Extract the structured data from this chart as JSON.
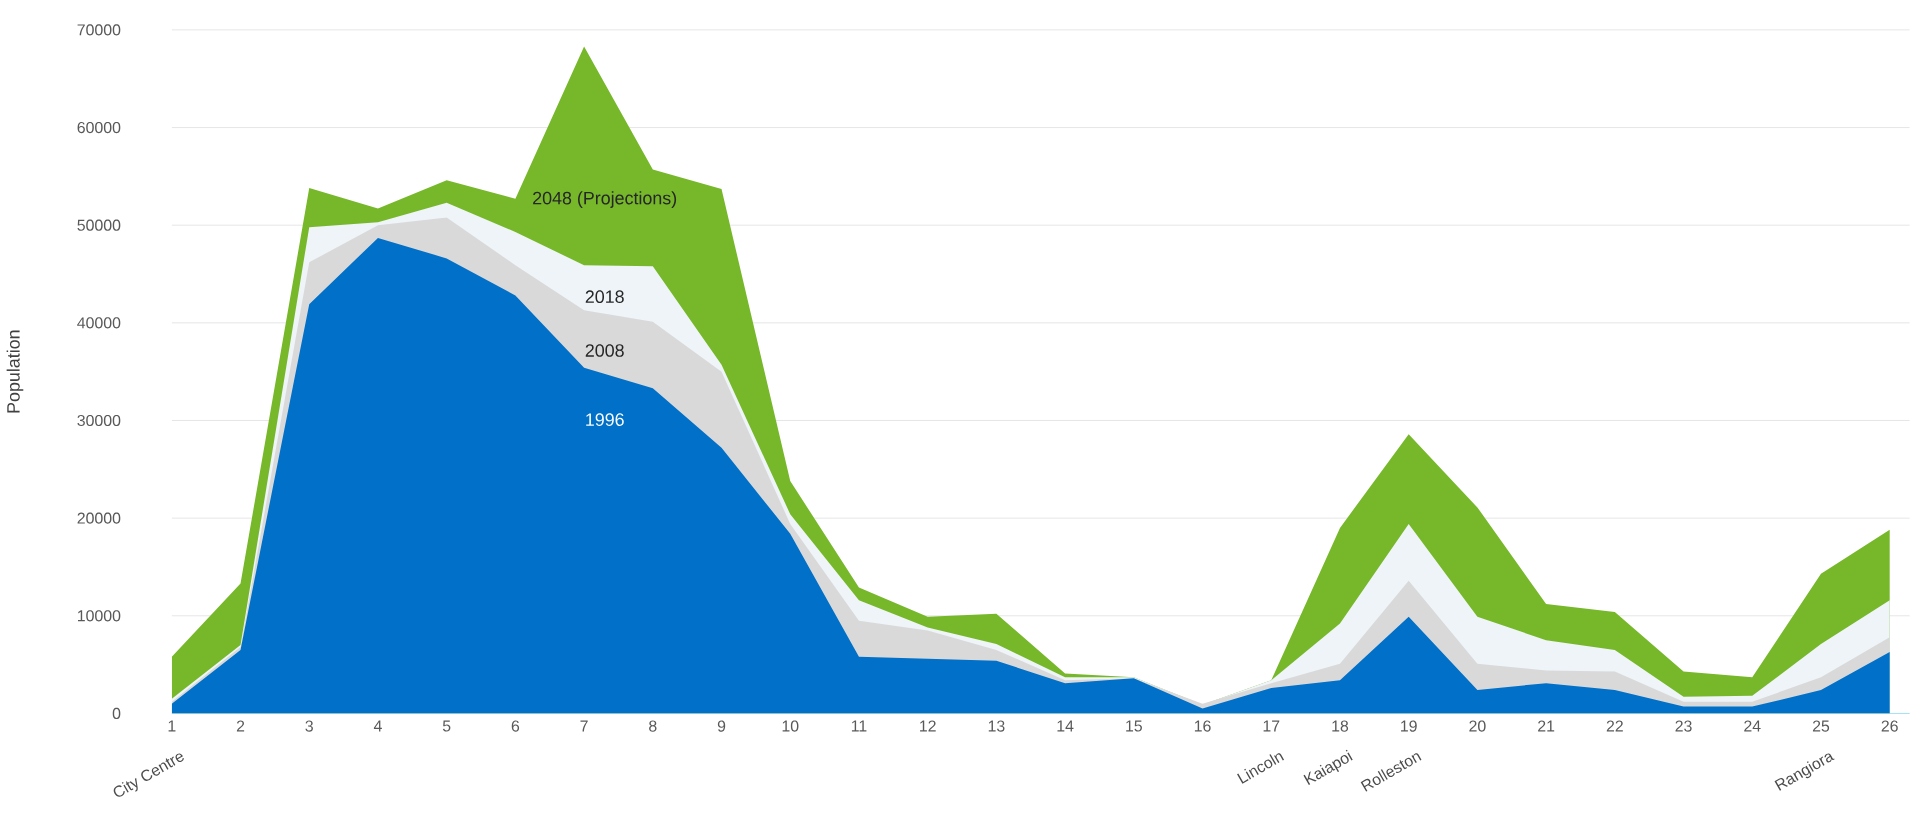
{
  "chart_data": {
    "type": "area",
    "ylabel": "Population",
    "categories": [
      "1",
      "2",
      "3",
      "4",
      "5",
      "6",
      "7",
      "8",
      "9",
      "10",
      "11",
      "12",
      "13",
      "14",
      "15",
      "16",
      "17",
      "18",
      "19",
      "20",
      "21",
      "22",
      "23",
      "24",
      "25",
      "26"
    ],
    "series": [
      {
        "name": "2048 (Projections)",
        "color": "#76b82a",
        "values": [
          5800,
          13300,
          53800,
          51700,
          54600,
          52700,
          68300,
          55700,
          53700,
          23800,
          12900,
          9900,
          10200,
          4100,
          3700,
          900,
          3400,
          19000,
          28600,
          21100,
          11200,
          10400,
          4300,
          3700,
          14300,
          18800
        ]
      },
      {
        "name": "2018",
        "color": "#eef4f8",
        "values": [
          1500,
          7000,
          49800,
          50300,
          52300,
          49300,
          45900,
          45800,
          35700,
          20400,
          11600,
          8800,
          7100,
          3700,
          3700,
          900,
          3400,
          9200,
          19400,
          9900,
          7500,
          6500,
          1700,
          1800,
          7100,
          11600
        ]
      },
      {
        "name": "2008",
        "color": "#d9d9d9",
        "values": [
          1200,
          6800,
          46200,
          50000,
          50800,
          45900,
          41300,
          40100,
          35000,
          19400,
          9500,
          8500,
          6500,
          3400,
          3600,
          1000,
          3100,
          5100,
          13600,
          5100,
          4400,
          4300,
          1200,
          1200,
          3700,
          7800
        ]
      },
      {
        "name": "1996",
        "color": "#0070c8",
        "values": [
          1000,
          6500,
          41900,
          48700,
          46600,
          42800,
          35400,
          33300,
          27200,
          18400,
          5800,
          5600,
          5400,
          3100,
          3600,
          500,
          2600,
          3400,
          9900,
          2400,
          3100,
          2400,
          700,
          700,
          2400,
          6300
        ]
      }
    ],
    "ylim": [
      0,
      70000
    ],
    "yticks": [
      0,
      10000,
      20000,
      30000,
      40000,
      50000,
      60000,
      70000
    ],
    "grid": "y",
    "annotations": [
      "City Centre",
      "Lincoln",
      "Kaiapoi",
      "Rolleston",
      "Rangiora"
    ]
  }
}
